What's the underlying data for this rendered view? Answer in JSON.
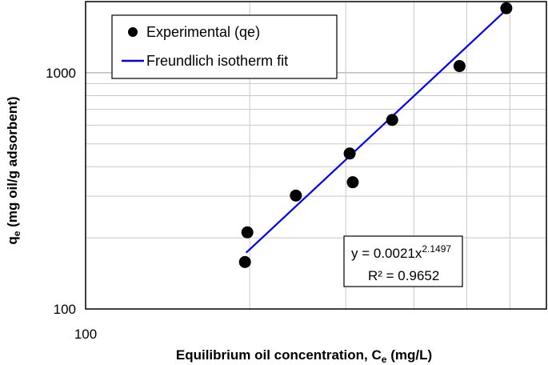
{
  "chart_data": {
    "type": "scatter",
    "xscale": "log",
    "yscale": "log",
    "xlim": [
      100,
      700
    ],
    "ylim": [
      100,
      2000
    ],
    "xticks": [
      "100"
    ],
    "yticks": [
      "100",
      "1000"
    ],
    "xlabel_main": "Equilibrium oil concentration, C",
    "xlabel_sub": "e",
    "xlabel_unit": " (mg/L)",
    "ylabel_main": "q",
    "ylabel_sub": "e",
    "ylabel_unit": " (mg oil/g adsorbent)",
    "grid": true,
    "legend_position": "top-left",
    "series": [
      {
        "name": "Experimental (qe)",
        "kind": "markers",
        "color": "#000000",
        "x": [
          196,
          198,
          243,
          305,
          309,
          365,
          485,
          591
        ],
        "y": [
          158,
          211,
          302,
          455,
          344,
          631,
          1067,
          1875
        ]
      },
      {
        "name": "Freundlich isotherm fit",
        "kind": "line",
        "color": "#0000ff",
        "x": [
          197,
          590
        ],
        "y": [
          173,
          1840
        ]
      }
    ],
    "equation_line1": "y = 0.0021x",
    "equation_exponent": "2.1497",
    "equation_line2": "R² = 0.9652"
  }
}
